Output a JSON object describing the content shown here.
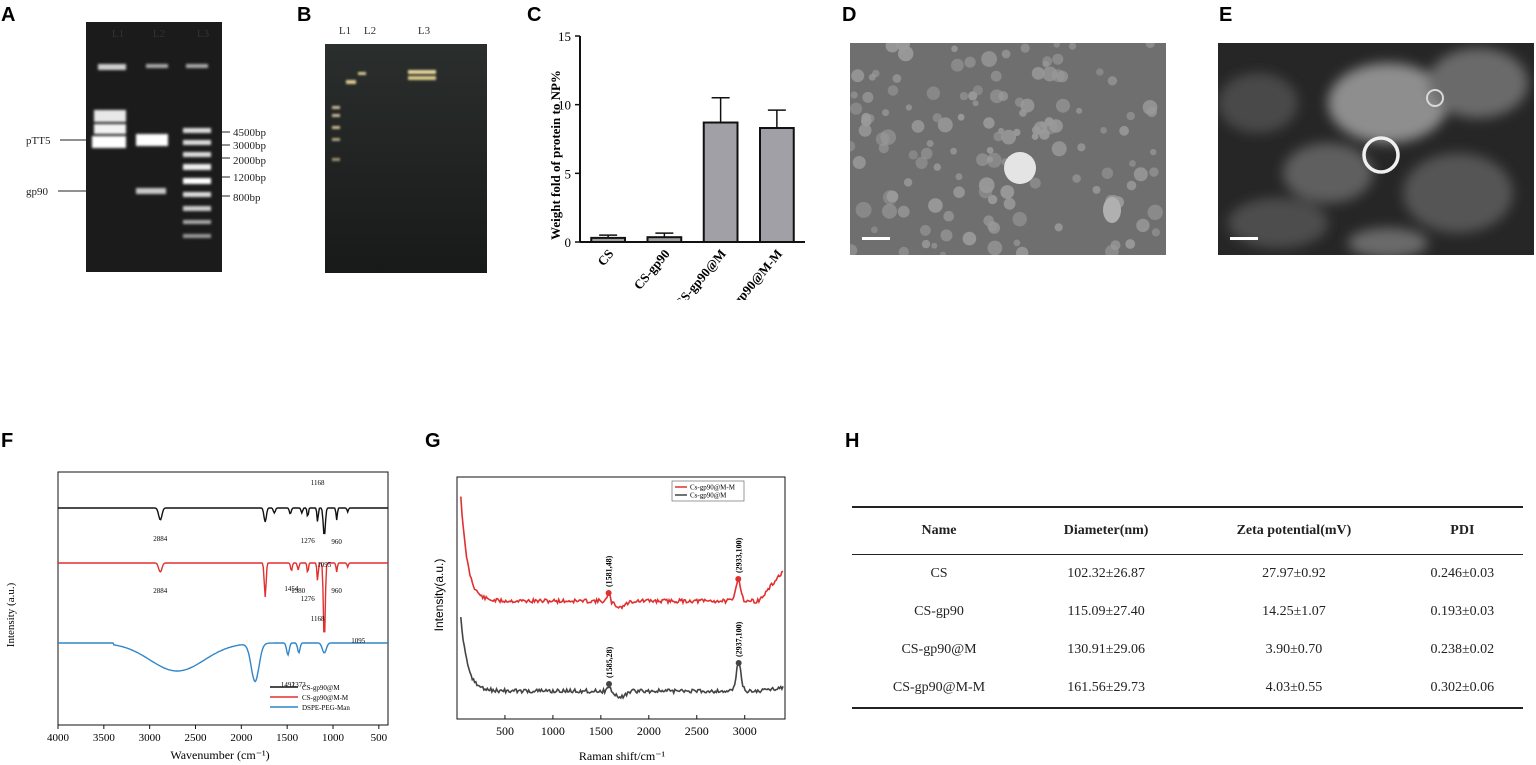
{
  "panels": {
    "A": "A",
    "B": "B",
    "C": "C",
    "D": "D",
    "E": "E",
    "F": "F",
    "G": "G",
    "H": "H"
  },
  "gel_a": {
    "lanes": [
      "L1",
      "L2",
      "L3"
    ],
    "left_labels": [
      "pTT5",
      "gp90"
    ],
    "ladder_labels": [
      "4500bp",
      "3000bp",
      "2000bp",
      "1200bp",
      "800bp"
    ]
  },
  "gel_b": {
    "lanes": [
      "L1",
      "L2",
      "L3"
    ]
  },
  "chart_data": [
    {
      "panel": "C",
      "type": "bar",
      "ylabel": "Weight fold of protein to NP%",
      "categories": [
        "CS",
        "CS-gp90",
        "CS-gp90@M",
        "CS-gp90@M-M"
      ],
      "values": [
        0.3,
        0.35,
        8.7,
        8.3
      ],
      "errors": [
        0.2,
        0.3,
        1.8,
        1.3
      ],
      "ylim": [
        0,
        15
      ],
      "yticks": [
        "0",
        "5",
        "10",
        "15"
      ],
      "bar_color": "#a0a0a6"
    },
    {
      "panel": "F",
      "type": "line",
      "xlabel": "Wavenumber (cm⁻¹)",
      "ylabel": "Intensity (a.u.)",
      "xlim": [
        4000,
        400
      ],
      "xticks": [
        "4000",
        "3500",
        "3000",
        "2500",
        "2000",
        "1500",
        "1000",
        "500"
      ],
      "legend": [
        "CS-gp90@M",
        "CS-gp90@M-M",
        "DSPE-PEG-Man"
      ],
      "colors": [
        "#111111",
        "#e03030",
        "#2f86c8"
      ],
      "annotations": {
        "black": [
          "2884",
          "1168",
          "1276",
          "960",
          "1095"
        ],
        "red": [
          "2884",
          "1454",
          "1380",
          "1276",
          "1168",
          "960"
        ],
        "blue": [
          "1095",
          "1492",
          "1373"
        ]
      }
    },
    {
      "panel": "G",
      "type": "line",
      "xlabel": "Raman shift/cm⁻¹",
      "ylabel": "Intensity(a.u.)",
      "xlim": [
        0,
        3420
      ],
      "xticks": [
        "500",
        "1000",
        "1500",
        "2000",
        "2500",
        "3000"
      ],
      "legend": [
        "Cs-gp90@M-M",
        "Cs-gp90@M"
      ],
      "colors": [
        "#e03030",
        "#444444"
      ],
      "peaks": [
        "(1581,48)",
        "(2933,100)",
        "(1585,28)",
        "(2937,100)"
      ]
    }
  ],
  "table_h": {
    "headers": [
      "Name",
      "Diameter(nm)",
      "Zeta potential(mV)",
      "PDI"
    ],
    "rows": [
      [
        "CS",
        "102.32±26.87",
        "27.97±0.92",
        "0.246±0.03"
      ],
      [
        "CS-gp90",
        "115.09±27.40",
        "14.25±1.07",
        "0.193±0.03"
      ],
      [
        "CS-gp90@M",
        "130.91±29.06",
        "3.90±0.70",
        "0.238±0.02"
      ],
      [
        "CS-gp90@M-M",
        "161.56±29.73",
        "4.03±0.55",
        "0.302±0.06"
      ]
    ]
  }
}
